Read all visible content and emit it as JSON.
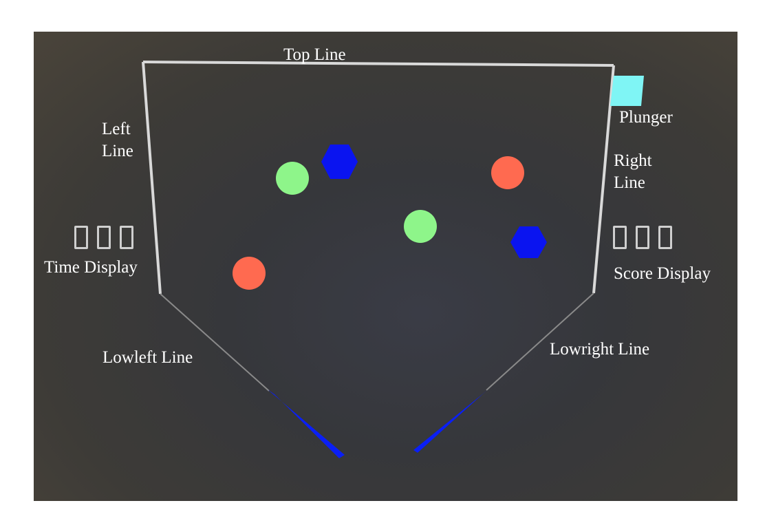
{
  "labels": {
    "top_line": "Top Line",
    "left_line": "Left\nLine",
    "right_line": "Right\nLine",
    "plunger": "Plunger",
    "time_display": "Time Display",
    "score_display": "Score Display",
    "lowleft_line": "Lowleft Line",
    "lowright_line": "Lowright Line"
  },
  "colors": {
    "wall": "#d9d9d9",
    "low_line": "#8a8a8a",
    "flipper": "#0a1ff5",
    "green_ball": "#8ef58a",
    "red_ball": "#ff6a50",
    "blue_hexagon": "#0a14f0",
    "plunger": "#7ff5f5",
    "digit_outline": "#cfcfcf"
  },
  "objects": {
    "green_balls": 2,
    "red_balls": 2,
    "blue_hexagons": 2,
    "flippers": 2
  },
  "time_display_digits": 3,
  "score_display_digits": 3
}
